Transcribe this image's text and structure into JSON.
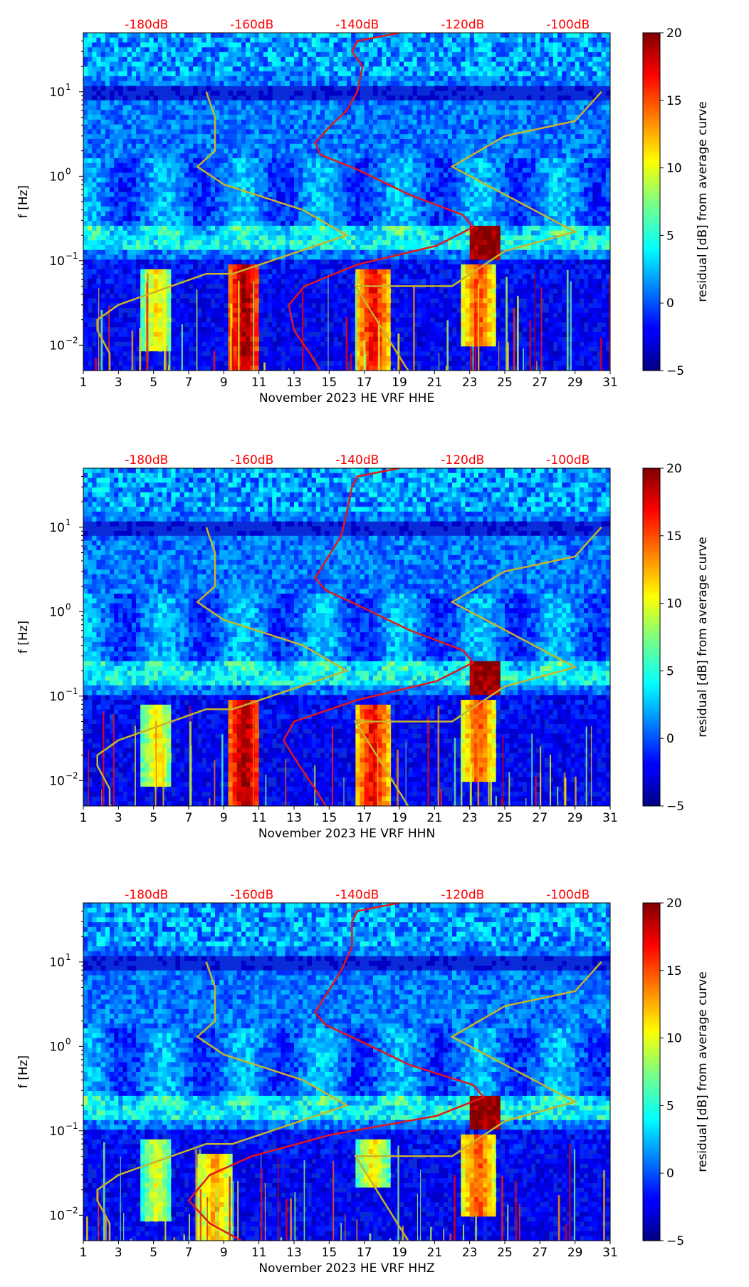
{
  "colors": {
    "psd_curve": "#e4171a",
    "noise_model": "#c8b42a",
    "top_axis_text": "#ff0000",
    "axis": "#000000"
  },
  "colorbar": {
    "label": "residual [dB] from average curve",
    "ticks": [
      {
        "value": 20,
        "label": "20"
      },
      {
        "value": 15,
        "label": "15"
      },
      {
        "value": 10,
        "label": "10"
      },
      {
        "value": 5,
        "label": "5"
      },
      {
        "value": 0,
        "label": "0"
      },
      {
        "value": -5,
        "label": "−5"
      }
    ],
    "range": [
      -5,
      20
    ],
    "colormap": "jet"
  },
  "chart_data": [
    {
      "type": "heatmap",
      "title": "",
      "xlabel": "November 2023 HE VRF  HHE",
      "ylabel": "f [Hz]",
      "xlim": [
        1,
        31
      ],
      "ylim_hz": [
        0.005,
        50
      ],
      "x_ticks": [
        "1",
        "3",
        "5",
        "7",
        "9",
        "11",
        "13",
        "15",
        "17",
        "19",
        "21",
        "23",
        "25",
        "27",
        "29",
        "31"
      ],
      "y_ticks": [
        {
          "base": "10",
          "exp": "−2"
        },
        {
          "base": "10",
          "exp": "−1"
        },
        {
          "base": "10",
          "exp": "0"
        },
        {
          "base": "10",
          "exp": "1"
        }
      ],
      "top_ticks": [
        "-180dB",
        "-160dB",
        "-140dB",
        "-120dB",
        "-100dB"
      ],
      "psd_db_curve": [
        [
          -132,
          50
        ],
        [
          -140,
          40
        ],
        [
          -141,
          30
        ],
        [
          -139,
          20
        ],
        [
          -140,
          10
        ],
        [
          -142,
          6
        ],
        [
          -145,
          4
        ],
        [
          -148,
          2.5
        ],
        [
          -147,
          1.8
        ],
        [
          -140,
          1.2
        ],
        [
          -130,
          0.6
        ],
        [
          -120,
          0.35
        ],
        [
          -118,
          0.25
        ],
        [
          -125,
          0.15
        ],
        [
          -140,
          0.09
        ],
        [
          -150,
          0.05
        ],
        [
          -153,
          0.03
        ],
        [
          -152,
          0.015
        ],
        [
          -149,
          0.008
        ],
        [
          -147,
          0.005
        ]
      ],
      "noise_model_x": [
        [
          8.0,
          10
        ],
        [
          8.5,
          5
        ],
        [
          8.5,
          2
        ],
        [
          7.5,
          1.3
        ],
        [
          9,
          0.8
        ],
        [
          13.5,
          0.4
        ],
        [
          16,
          0.2
        ],
        [
          9.5,
          0.07
        ],
        [
          8,
          0.07
        ],
        [
          3,
          0.03
        ],
        [
          1.8,
          0.02
        ],
        [
          1.8,
          0.015
        ],
        [
          2.5,
          0.008
        ],
        [
          2.5,
          0.005
        ]
      ],
      "noise_model_y": [
        [
          30.5,
          10
        ],
        [
          29,
          4.5
        ],
        [
          25,
          3
        ],
        [
          22,
          1.3
        ],
        [
          29,
          0.22
        ],
        [
          25,
          0.13
        ],
        [
          22,
          0.05
        ],
        [
          16.5,
          0.05
        ],
        [
          19.5,
          0.005
        ]
      ],
      "hot_spots": [
        {
          "day": 10.2,
          "f_lo": 0.005,
          "f_hi": 0.09,
          "level": 18
        },
        {
          "day": 17.5,
          "f_lo": 0.005,
          "f_hi": 0.08,
          "level": 16
        },
        {
          "day": 23.5,
          "f_lo": 0.01,
          "f_hi": 0.09,
          "level": 14
        },
        {
          "day": 5.2,
          "f_lo": 0.008,
          "f_hi": 0.08,
          "level": 10
        }
      ]
    },
    {
      "type": "heatmap",
      "title": "",
      "xlabel": "November 2023 HE VRF  HHN",
      "ylabel": "f [Hz]",
      "xlim": [
        1,
        31
      ],
      "ylim_hz": [
        0.005,
        50
      ],
      "x_ticks": [
        "1",
        "3",
        "5",
        "7",
        "9",
        "11",
        "13",
        "15",
        "17",
        "19",
        "21",
        "23",
        "25",
        "27",
        "29",
        "31"
      ],
      "y_ticks": [
        {
          "base": "10",
          "exp": "−2"
        },
        {
          "base": "10",
          "exp": "−1"
        },
        {
          "base": "10",
          "exp": "0"
        },
        {
          "base": "10",
          "exp": "1"
        }
      ],
      "top_ticks": [
        "-180dB",
        "-160dB",
        "-140dB",
        "-120dB",
        "-100dB"
      ],
      "psd_db_curve": [
        [
          -132,
          50
        ],
        [
          -140,
          40
        ],
        [
          -141,
          30
        ],
        [
          -142,
          15
        ],
        [
          -143,
          8
        ],
        [
          -146,
          4
        ],
        [
          -148,
          2.5
        ],
        [
          -146,
          1.8
        ],
        [
          -140,
          1.2
        ],
        [
          -130,
          0.6
        ],
        [
          -120,
          0.35
        ],
        [
          -118,
          0.25
        ],
        [
          -125,
          0.15
        ],
        [
          -140,
          0.09
        ],
        [
          -152,
          0.05
        ],
        [
          -154,
          0.03
        ],
        [
          -151,
          0.015
        ],
        [
          -148,
          0.008
        ],
        [
          -146,
          0.005
        ]
      ],
      "noise_model_x": [
        [
          8.0,
          10
        ],
        [
          8.5,
          5
        ],
        [
          8.5,
          2
        ],
        [
          7.5,
          1.3
        ],
        [
          9,
          0.8
        ],
        [
          13.5,
          0.4
        ],
        [
          16,
          0.2
        ],
        [
          9.5,
          0.07
        ],
        [
          8,
          0.07
        ],
        [
          3,
          0.03
        ],
        [
          1.8,
          0.02
        ],
        [
          1.8,
          0.015
        ],
        [
          2.5,
          0.008
        ],
        [
          2.5,
          0.005
        ]
      ],
      "noise_model_y": [
        [
          30.5,
          10
        ],
        [
          29,
          4.5
        ],
        [
          25,
          3
        ],
        [
          22,
          1.3
        ],
        [
          29,
          0.22
        ],
        [
          25,
          0.13
        ],
        [
          22,
          0.05
        ],
        [
          16.5,
          0.05
        ],
        [
          19.5,
          0.005
        ]
      ],
      "hot_spots": [
        {
          "day": 10.2,
          "f_lo": 0.005,
          "f_hi": 0.09,
          "level": 18
        },
        {
          "day": 17.5,
          "f_lo": 0.005,
          "f_hi": 0.08,
          "level": 16
        },
        {
          "day": 23.5,
          "f_lo": 0.01,
          "f_hi": 0.09,
          "level": 14
        },
        {
          "day": 5.2,
          "f_lo": 0.008,
          "f_hi": 0.08,
          "level": 10
        }
      ]
    },
    {
      "type": "heatmap",
      "title": "",
      "xlabel": "November 2023 HE VRF  HHZ",
      "ylabel": "f [Hz]",
      "xlim": [
        1,
        31
      ],
      "ylim_hz": [
        0.005,
        50
      ],
      "x_ticks": [
        "1",
        "3",
        "5",
        "7",
        "9",
        "11",
        "13",
        "15",
        "17",
        "19",
        "21",
        "23",
        "25",
        "27",
        "29",
        "31"
      ],
      "y_ticks": [
        {
          "base": "10",
          "exp": "−2"
        },
        {
          "base": "10",
          "exp": "−1"
        },
        {
          "base": "10",
          "exp": "0"
        },
        {
          "base": "10",
          "exp": "1"
        }
      ],
      "top_ticks": [
        "-180dB",
        "-160dB",
        "-140dB",
        "-120dB",
        "-100dB"
      ],
      "psd_db_curve": [
        [
          -132,
          50
        ],
        [
          -140,
          40
        ],
        [
          -141,
          30
        ],
        [
          -141,
          15
        ],
        [
          -143,
          8
        ],
        [
          -146,
          4
        ],
        [
          -148,
          2.5
        ],
        [
          -146,
          1.8
        ],
        [
          -140,
          1.2
        ],
        [
          -130,
          0.6
        ],
        [
          -118,
          0.35
        ],
        [
          -116,
          0.25
        ],
        [
          -125,
          0.15
        ],
        [
          -145,
          0.09
        ],
        [
          -160,
          0.05
        ],
        [
          -168,
          0.03
        ],
        [
          -172,
          0.015
        ],
        [
          -168,
          0.008
        ],
        [
          -162,
          0.005
        ]
      ],
      "noise_model_x": [
        [
          8.0,
          10
        ],
        [
          8.5,
          5
        ],
        [
          8.5,
          2
        ],
        [
          7.5,
          1.3
        ],
        [
          9,
          0.8
        ],
        [
          13.5,
          0.4
        ],
        [
          16,
          0.2
        ],
        [
          9.5,
          0.07
        ],
        [
          8,
          0.07
        ],
        [
          3,
          0.03
        ],
        [
          1.8,
          0.02
        ],
        [
          1.8,
          0.015
        ],
        [
          2.5,
          0.008
        ],
        [
          2.5,
          0.005
        ]
      ],
      "noise_model_y": [
        [
          30.5,
          10
        ],
        [
          29,
          4.5
        ],
        [
          25,
          3
        ],
        [
          22,
          1.3
        ],
        [
          29,
          0.22
        ],
        [
          25,
          0.13
        ],
        [
          22,
          0.05
        ],
        [
          16.5,
          0.05
        ],
        [
          19.5,
          0.005
        ]
      ],
      "hot_spots": [
        {
          "day": 8.5,
          "f_lo": 0.005,
          "f_hi": 0.05,
          "level": 12
        },
        {
          "day": 17.5,
          "f_lo": 0.02,
          "f_hi": 0.08,
          "level": 10
        },
        {
          "day": 23.5,
          "f_lo": 0.01,
          "f_hi": 0.09,
          "level": 14
        },
        {
          "day": 5.2,
          "f_lo": 0.008,
          "f_hi": 0.08,
          "level": 9
        }
      ]
    }
  ]
}
